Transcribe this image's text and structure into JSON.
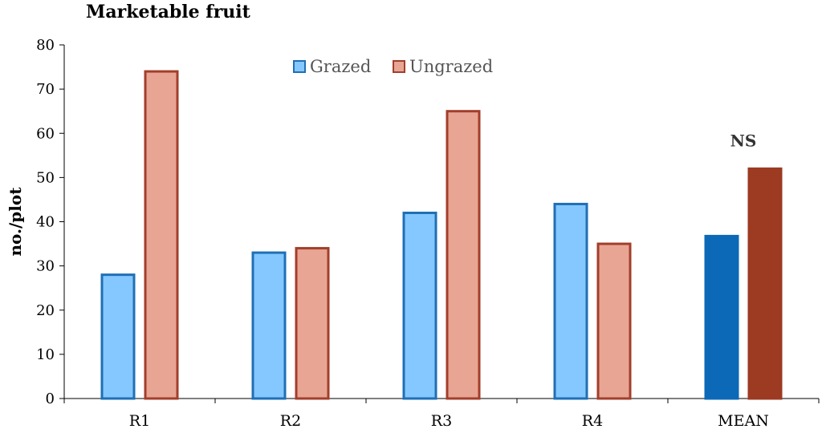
{
  "chart_data": {
    "type": "bar",
    "title": "Marketable fruit",
    "xlabel": "",
    "ylabel": "no./plot",
    "ylim": [
      0,
      80
    ],
    "yticks": [
      0,
      10,
      20,
      30,
      40,
      50,
      60,
      70,
      80
    ],
    "categories": [
      "R1",
      "R2",
      "R3",
      "R4",
      "MEAN"
    ],
    "series": [
      {
        "name": "Grazed",
        "values": [
          28,
          33,
          42,
          44,
          36.75
        ],
        "fill": "#85c8ff",
        "stroke": "#1f6fb5",
        "highlight_fill": "#0b69b8"
      },
      {
        "name": "Ungrazed",
        "values": [
          74,
          34,
          65,
          35,
          52
        ],
        "fill": "#e8a594",
        "stroke": "#a33e2b",
        "highlight_fill": "#9c3a22"
      }
    ],
    "highlight_category": "MEAN",
    "annotations": [
      {
        "text": "NS",
        "category": "MEAN"
      }
    ],
    "legend": "top-center",
    "grid": false
  }
}
